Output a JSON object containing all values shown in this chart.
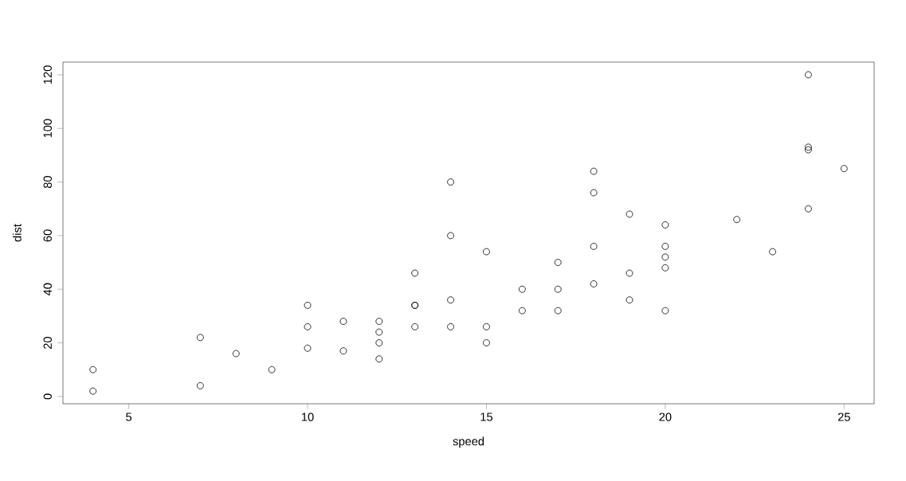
{
  "chart_data": {
    "type": "scatter",
    "xlabel": "speed",
    "ylabel": "dist",
    "marker": "circle",
    "color": "#000000",
    "x": [
      4,
      4,
      7,
      7,
      8,
      9,
      10,
      10,
      10,
      11,
      11,
      12,
      12,
      12,
      12,
      13,
      13,
      13,
      13,
      14,
      14,
      14,
      14,
      15,
      15,
      15,
      16,
      16,
      17,
      17,
      17,
      18,
      18,
      18,
      18,
      19,
      19,
      19,
      20,
      20,
      20,
      20,
      20,
      22,
      23,
      24,
      24,
      24,
      24,
      25
    ],
    "values": [
      2,
      10,
      4,
      22,
      16,
      10,
      18,
      26,
      34,
      17,
      28,
      14,
      20,
      24,
      28,
      26,
      34,
      34,
      46,
      26,
      36,
      60,
      80,
      20,
      26,
      54,
      32,
      40,
      32,
      40,
      50,
      42,
      56,
      76,
      84,
      36,
      46,
      68,
      32,
      48,
      52,
      56,
      64,
      66,
      54,
      70,
      92,
      93,
      120,
      85
    ],
    "xlim": [
      3.16,
      25.84
    ],
    "ylim": [
      -2.72,
      124.72
    ],
    "xticks": [
      5,
      10,
      15,
      20,
      25
    ],
    "yticks": [
      0,
      20,
      40,
      60,
      80,
      100,
      120
    ]
  }
}
